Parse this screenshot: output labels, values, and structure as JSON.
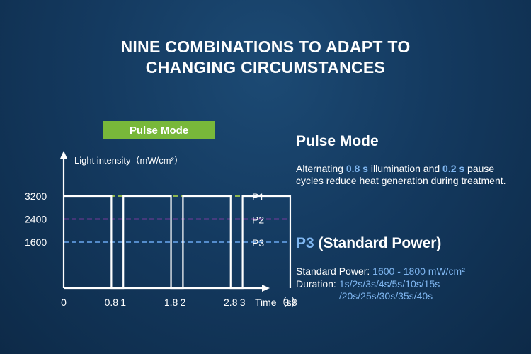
{
  "title_line1": "NINE COMBINATIONS TO ADAPT TO",
  "title_line2": "CHANGING CIRCUMSTANCES",
  "pill_label": "Pulse Mode",
  "right": {
    "heading": "Pulse Mode",
    "desc_pre": "Alternating ",
    "desc_hl1": "0.8 s",
    "desc_mid": " illumination and ",
    "desc_hl2": "0.2 s",
    "desc_post": " pause cycles reduce heat generation during treatment.",
    "p3_label": "P3",
    "p3_rest": " (Standard Power)",
    "std_label": "Standard Power: ",
    "std_value": "1600 - 1800 mW/cm²",
    "dur_label": "Duration:",
    "dur_line1": "1s/2s/3s/4s/5s/10s/15s",
    "dur_line2": "/20s/25s/30s/35s/40s"
  },
  "colors": {
    "accent_green": "#78b83a",
    "highlight_blue": "#7fb6f0",
    "p1": "#b8e04a",
    "p2": "#d43cd4",
    "p3": "#6aa8f0"
  },
  "chart_data": {
    "type": "line",
    "ylabel": "Light intensity（mW/cm²）",
    "xlabel": "Time（s）",
    "x_ticks": [
      "0",
      "0.8",
      "1",
      "1.8",
      "2",
      "2.8",
      "3",
      "3.8"
    ],
    "x_tick_values": [
      0,
      0.8,
      1,
      1.8,
      2,
      2.8,
      3,
      3.8
    ],
    "y_ticks": [
      "3200",
      "2400",
      "1600"
    ],
    "y_tick_values": [
      3200,
      2400,
      1600
    ],
    "pulse": {
      "on_duration": 0.8,
      "off_duration": 0.2,
      "cycles": 4,
      "high": 3200,
      "low": 0
    },
    "series": [
      {
        "name": "P1",
        "value": 3200,
        "style": "dashed"
      },
      {
        "name": "P2",
        "value": 2400,
        "style": "dashed"
      },
      {
        "name": "P3",
        "value": 1600,
        "style": "dashed"
      }
    ]
  }
}
